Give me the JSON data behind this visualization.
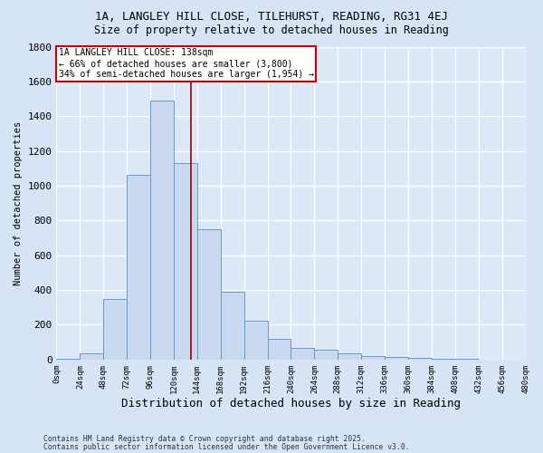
{
  "title1": "1A, LANGLEY HILL CLOSE, TILEHURST, READING, RG31 4EJ",
  "title2": "Size of property relative to detached houses in Reading",
  "xlabel": "Distribution of detached houses by size in Reading",
  "ylabel": "Number of detached properties",
  "bin_edges": [
    0,
    24,
    48,
    72,
    96,
    120,
    144,
    168,
    192,
    216,
    240,
    264,
    288,
    312,
    336,
    360,
    384,
    408,
    432,
    456,
    480
  ],
  "bar_heights": [
    2,
    35,
    350,
    1060,
    1490,
    1130,
    750,
    390,
    225,
    120,
    65,
    55,
    35,
    20,
    15,
    10,
    5,
    2,
    1,
    1
  ],
  "bar_color": "#c9d9ef",
  "bar_edge_color": "#6699cc",
  "fig_bg_color": "#d6e4f5",
  "ax_bg_color": "#dce8f8",
  "grid_color": "#ffffff",
  "vline_x": 138,
  "vline_color": "#990000",
  "annotation_line1": "1A LANGLEY HILL CLOSE: 138sqm",
  "annotation_line2": "← 66% of detached houses are smaller (3,800)",
  "annotation_line3": "34% of semi-detached houses are larger (1,954) →",
  "annotation_box_color": "#ffffff",
  "annotation_box_edge": "#cc0000",
  "ylim": [
    0,
    1800
  ],
  "yticks": [
    0,
    200,
    400,
    600,
    800,
    1000,
    1200,
    1400,
    1600,
    1800
  ],
  "footnote1": "Contains HM Land Registry data © Crown copyright and database right 2025.",
  "footnote2": "Contains public sector information licensed under the Open Government Licence v3.0."
}
